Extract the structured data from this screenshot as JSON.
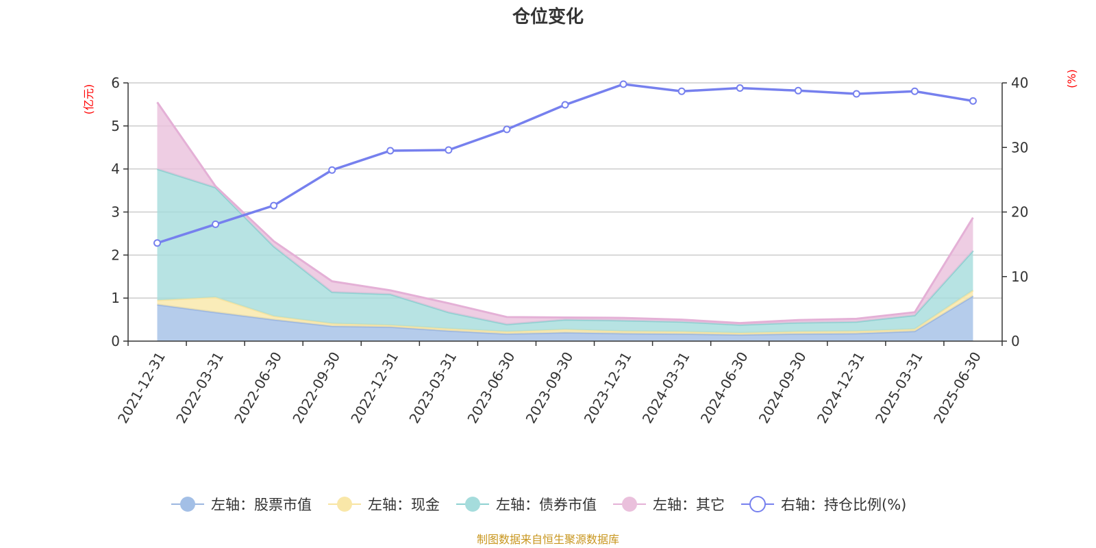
{
  "chart_data": {
    "type": "area",
    "title": "仓位变化",
    "left_axis_unit": "(亿元)",
    "right_axis_unit": "(%)",
    "left_ylim": [
      0,
      6
    ],
    "left_ticks": [
      0,
      1,
      2,
      3,
      4,
      5,
      6
    ],
    "right_ylim": [
      0,
      40
    ],
    "right_ticks": [
      0,
      10,
      20,
      30,
      40
    ],
    "grid": true,
    "legend_position": "bottom",
    "categories": [
      "2021-12-31",
      "2022-03-31",
      "2022-06-30",
      "2022-09-30",
      "2022-12-31",
      "2023-03-31",
      "2023-06-30",
      "2023-09-30",
      "2023-12-31",
      "2024-03-31",
      "2024-06-30",
      "2024-09-30",
      "2024-12-31",
      "2025-03-31",
      "2025-06-30"
    ],
    "stacked_series": [
      {
        "name": "左轴：股票市值",
        "axis": "left",
        "color": "#a3bfe6",
        "line_color": "#9bb6e0",
        "values": [
          0.85,
          0.67,
          0.5,
          0.35,
          0.33,
          0.24,
          0.17,
          0.2,
          0.18,
          0.17,
          0.15,
          0.17,
          0.18,
          0.23,
          1.05
        ]
      },
      {
        "name": "左轴：现金",
        "axis": "left",
        "color": "#f9e7a8",
        "line_color": "#f7e3a0",
        "values": [
          0.1,
          0.35,
          0.08,
          0.06,
          0.04,
          0.05,
          0.05,
          0.07,
          0.05,
          0.05,
          0.04,
          0.05,
          0.05,
          0.05,
          0.13
        ]
      },
      {
        "name": "左轴：债券市值",
        "axis": "left",
        "color": "#a5dcdc",
        "line_color": "#8ed1d1",
        "values": [
          3.05,
          2.55,
          1.62,
          0.73,
          0.72,
          0.38,
          0.17,
          0.23,
          0.25,
          0.23,
          0.19,
          0.21,
          0.22,
          0.32,
          0.92
        ]
      },
      {
        "name": "左轴：其它",
        "axis": "left",
        "color": "#eac0dc",
        "line_color": "#e4b0d6",
        "values": [
          1.55,
          0.03,
          0.12,
          0.25,
          0.09,
          0.21,
          0.17,
          0.05,
          0.06,
          0.05,
          0.04,
          0.06,
          0.07,
          0.07,
          0.77
        ]
      }
    ],
    "line_series": {
      "name": "右轴：持仓比例(%)",
      "axis": "right",
      "color": "#7680ee",
      "values": [
        15.2,
        18.1,
        21.0,
        26.5,
        29.5,
        29.6,
        32.8,
        36.6,
        39.8,
        38.7,
        39.2,
        38.8,
        38.3,
        38.7,
        37.2
      ]
    }
  },
  "footer": {
    "source": "制图数据来自恒生聚源数据库"
  }
}
